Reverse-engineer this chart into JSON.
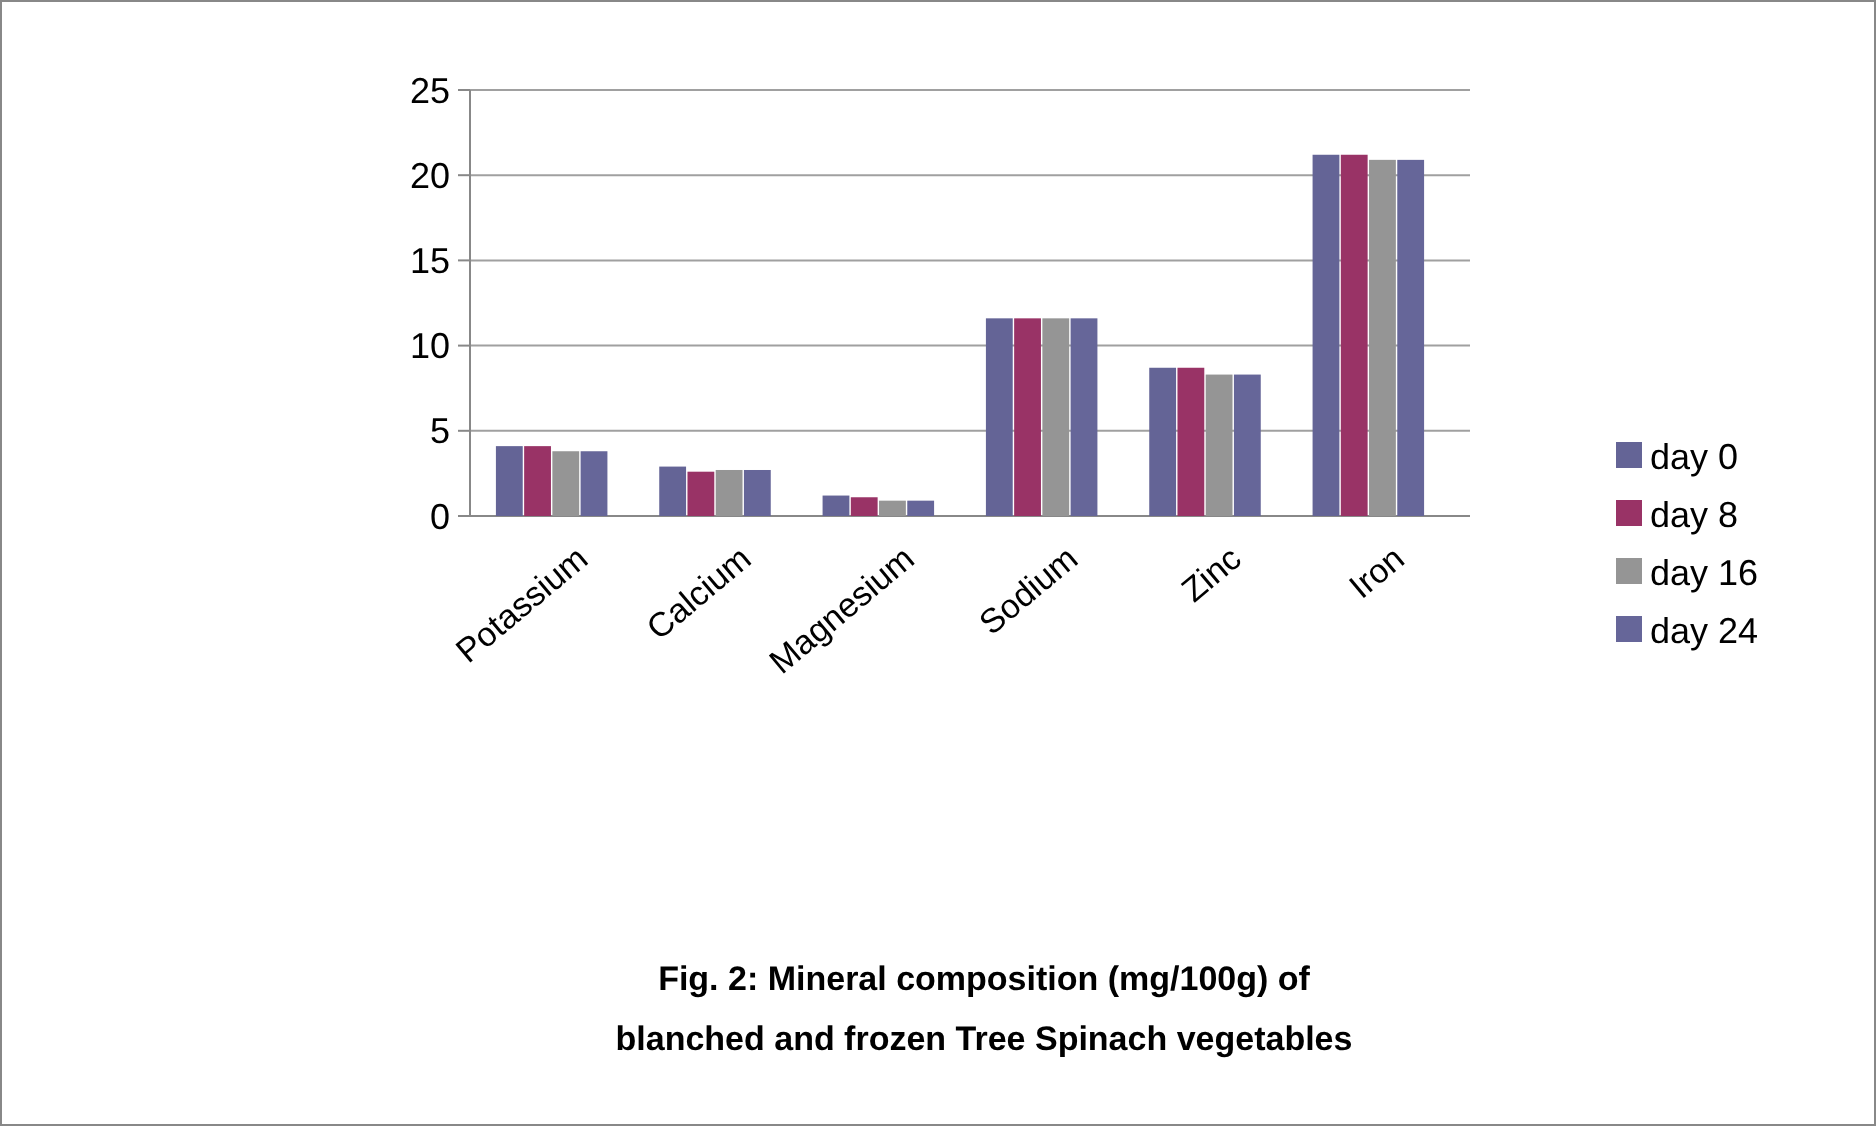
{
  "chart_data": {
    "type": "bar",
    "title": "Fig. 2: Mineral composition (mg/100g) of\nblanched and frozen Tree Spinach vegetables",
    "categories": [
      "Potassium",
      "Calcium",
      "Magnesium",
      "Sodium",
      "Zinc",
      "Iron"
    ],
    "series": [
      {
        "name": "day 0",
        "color": "#646496",
        "values": [
          4.1,
          2.9,
          1.2,
          11.6,
          8.7,
          21.2
        ]
      },
      {
        "name": "day 8",
        "color": "#993366",
        "values": [
          4.1,
          2.6,
          1.1,
          11.6,
          8.7,
          21.2
        ]
      },
      {
        "name": "day 16",
        "color": "#959595",
        "values": [
          3.8,
          2.7,
          0.9,
          11.6,
          8.3,
          20.9
        ]
      },
      {
        "name": "day 24",
        "color": "#666699",
        "values": [
          3.8,
          2.7,
          0.9,
          11.6,
          8.3,
          20.9
        ]
      }
    ],
    "ylim": [
      0,
      25
    ],
    "yticks": [
      0,
      5,
      10,
      15,
      20,
      25
    ],
    "grid": "y",
    "legend": "right"
  }
}
